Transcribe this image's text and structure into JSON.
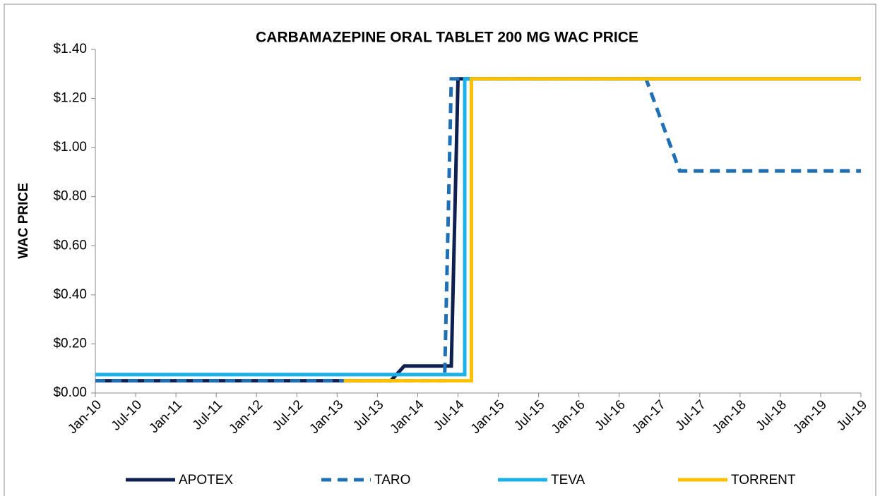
{
  "chart_data": {
    "type": "line",
    "title": "CARBAMAZEPINE ORAL TABLET 200 MG WAC PRICE",
    "y_label": "WAC PRICE",
    "categories": [
      "Jan-10",
      "Jul-10",
      "Jan-11",
      "Jul-11",
      "Jan-12",
      "Jul-12",
      "Jan-13",
      "Jul-13",
      "Jan-14",
      "Jul-14",
      "Jan-15",
      "Jul-15",
      "Jan-16",
      "Jul-16",
      "Jan-17",
      "Jul-17",
      "Jan-18",
      "Jul-18",
      "Jan-19",
      "Jul-19"
    ],
    "ylim": [
      0,
      1.4
    ],
    "yticks": [
      {
        "value": 0,
        "label": "$0.00"
      },
      {
        "value": 0.2,
        "label": "$0.20"
      },
      {
        "value": 0.4,
        "label": "$0.40"
      },
      {
        "value": 0.6,
        "label": "$0.60"
      },
      {
        "value": 0.8,
        "label": "$0.80"
      },
      {
        "value": 1.0,
        "label": "$1.00"
      },
      {
        "value": 1.2,
        "label": "$1.20"
      },
      {
        "value": 1.4,
        "label": "$1.40"
      }
    ],
    "grid": false,
    "legend": "bottom",
    "series": [
      {
        "name": "APOTEX",
        "color": "#0e2050",
        "dash": false,
        "x": [
          "Jan-10",
          "Sep-13",
          "Nov-13",
          "Jun-14",
          "Jul-14",
          "Jul-19"
        ],
        "values": [
          0.05,
          0.05,
          0.11,
          0.11,
          1.28,
          1.28
        ]
      },
      {
        "name": "TARO",
        "color": "#1f6fb5",
        "dash": true,
        "x": [
          "Jan-10",
          "May-14",
          "Jun-14",
          "Nov-16",
          "Apr-17",
          "Jul-19"
        ],
        "values": [
          0.05,
          0.05,
          1.28,
          1.28,
          0.905,
          0.905
        ]
      },
      {
        "name": "TEVA",
        "color": "#1bb0e8",
        "dash": false,
        "x": [
          "Jan-10",
          "Aug-14",
          "Aug-14",
          "Jul-19"
        ],
        "values": [
          0.075,
          0.075,
          1.28,
          1.28
        ]
      },
      {
        "name": "TORRENT",
        "color": "#ffc000",
        "dash": false,
        "x": [
          "Feb-13",
          "Sep-14",
          "Sep-14",
          "Jul-19"
        ],
        "values": [
          0.05,
          0.05,
          1.28,
          1.28
        ]
      }
    ]
  }
}
